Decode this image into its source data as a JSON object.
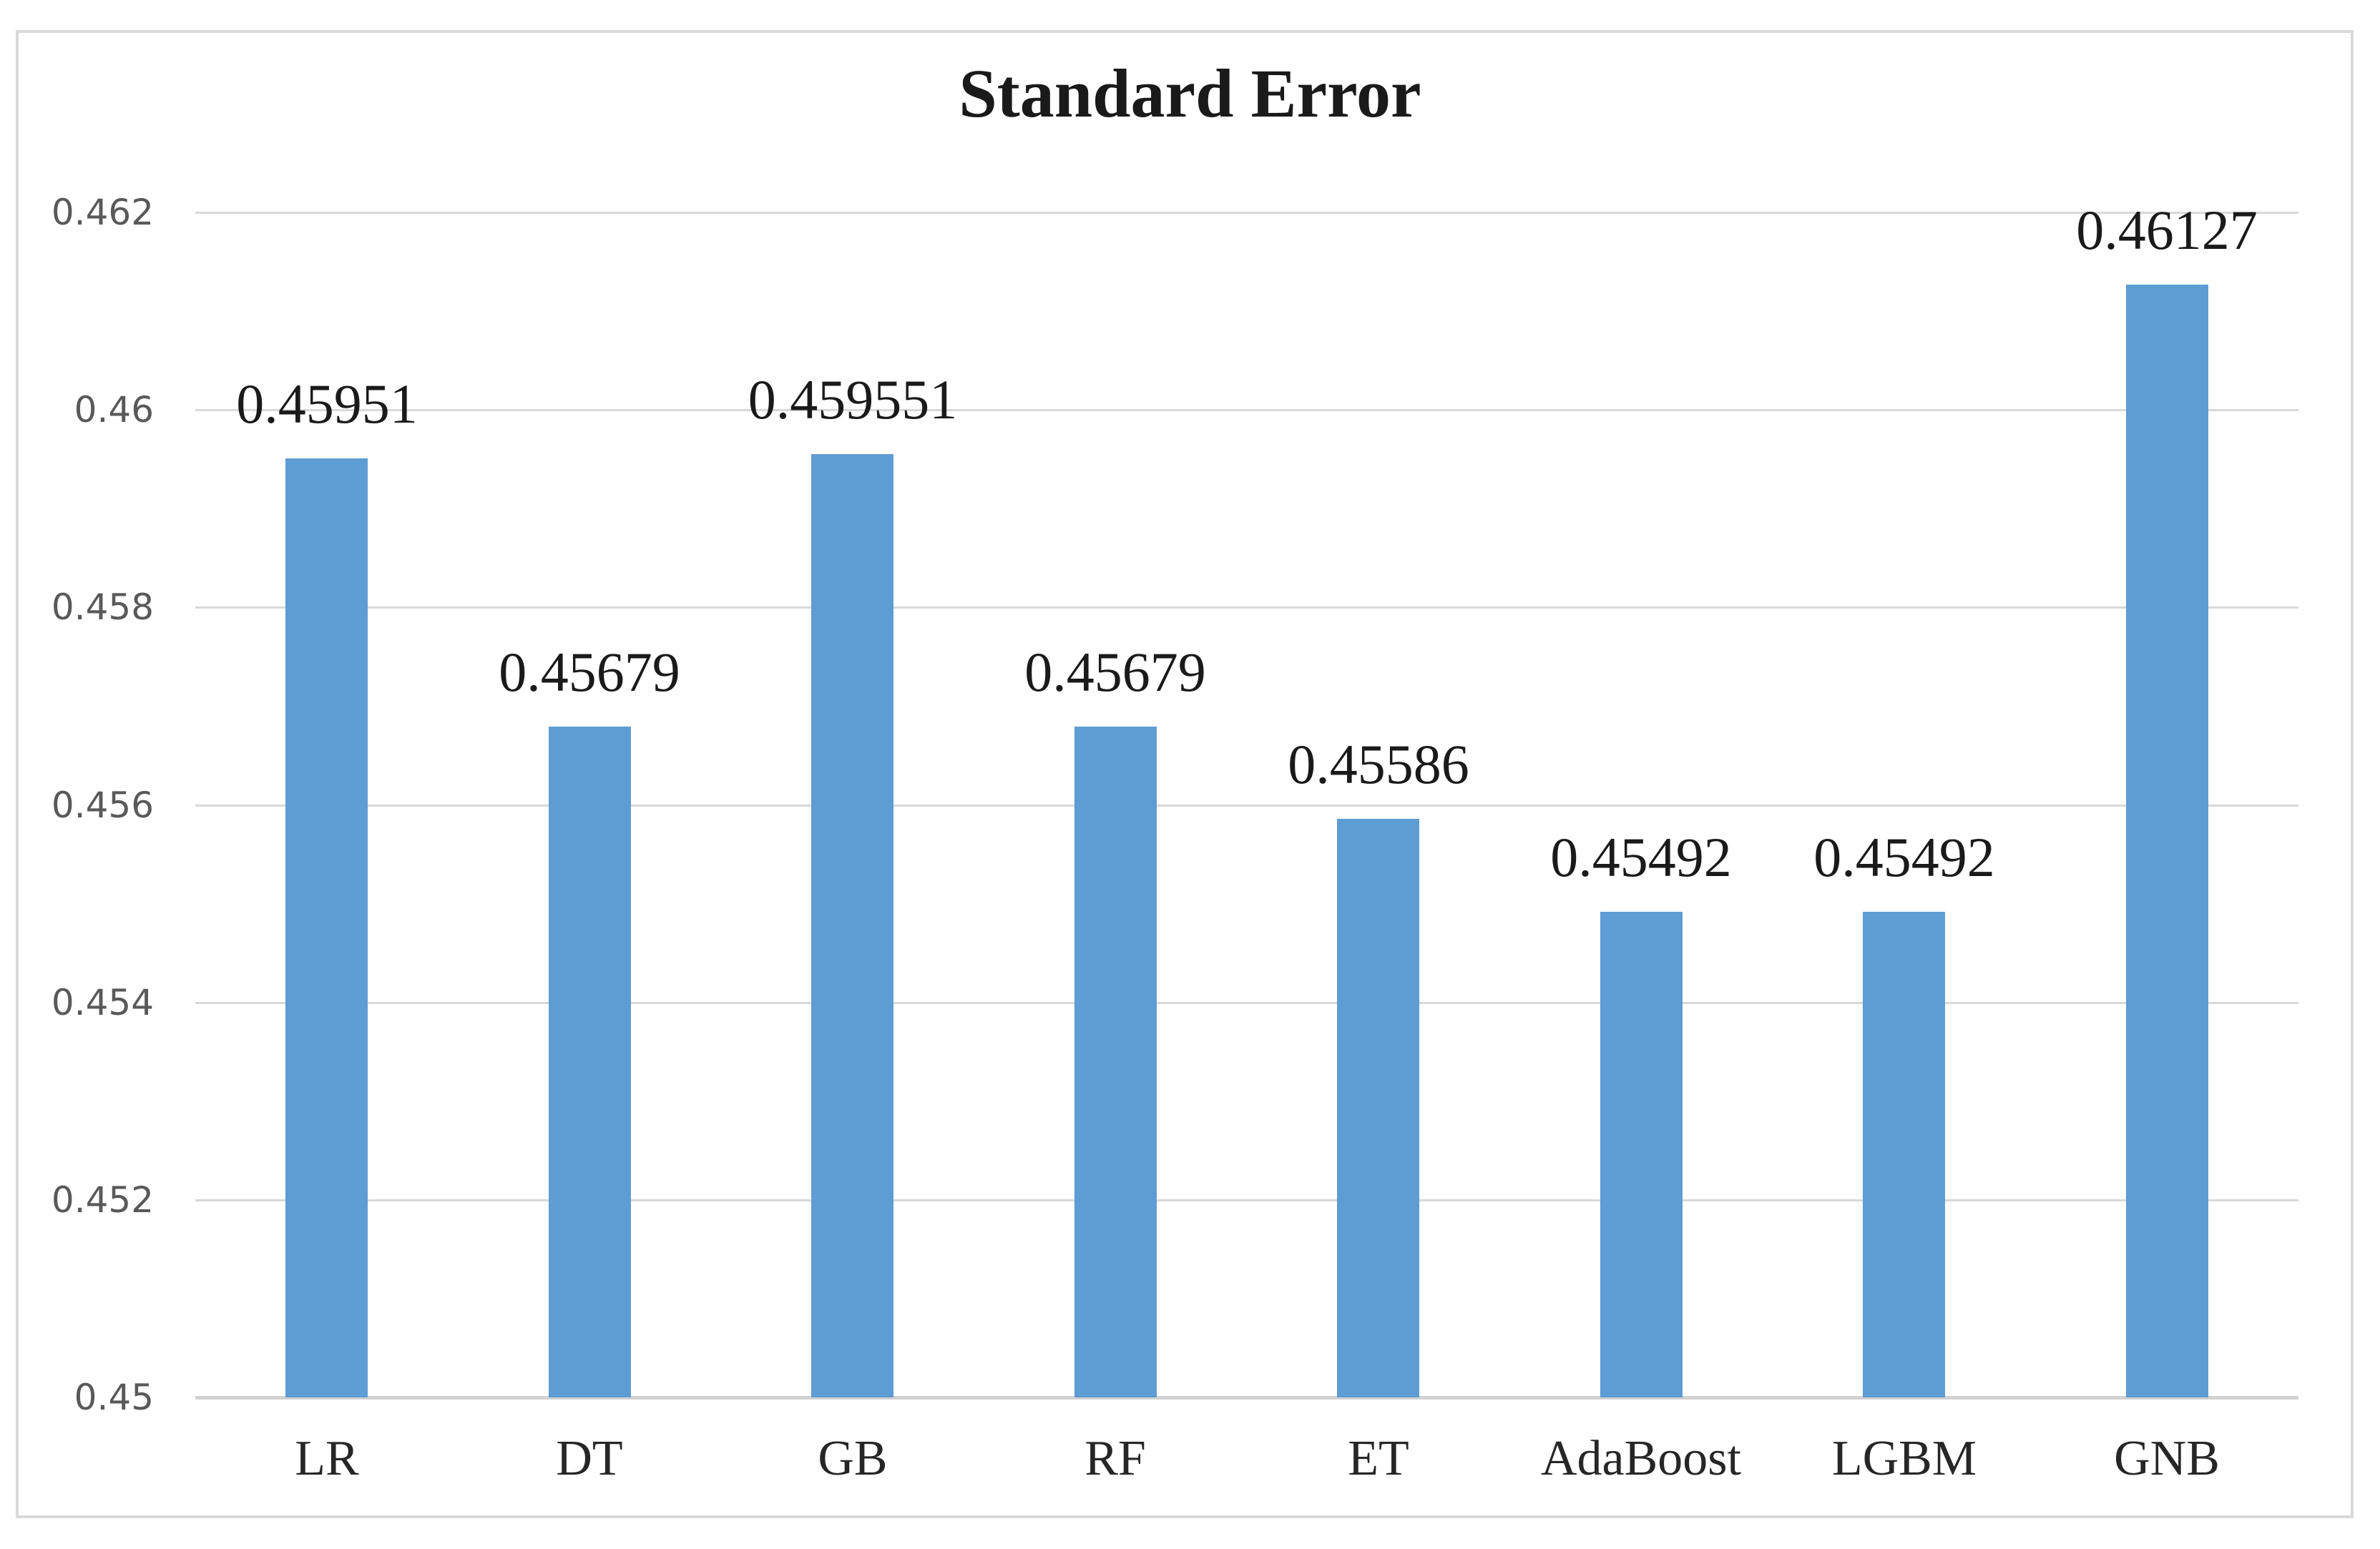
{
  "chart_data": {
    "type": "bar",
    "title": "Standard Error",
    "categories": [
      "LR",
      "DT",
      "GB",
      "RF",
      "ET",
      "AdaBoost",
      "LGBM",
      "GNB"
    ],
    "values": [
      0.45951,
      0.45679,
      0.459551,
      0.45679,
      0.45586,
      0.45492,
      0.45492,
      0.46127
    ],
    "data_labels": [
      "0.45951",
      "0.45679",
      "0.459551",
      "0.45679",
      "0.45586",
      "0.45492",
      "0.45492",
      "0.46127"
    ],
    "xlabel": "",
    "ylabel": "",
    "ylim": [
      0.45,
      0.462
    ],
    "yticks": [
      {
        "v": 0.45,
        "label": "0.45"
      },
      {
        "v": 0.452,
        "label": "0.452"
      },
      {
        "v": 0.454,
        "label": "0.454"
      },
      {
        "v": 0.456,
        "label": "0.456"
      },
      {
        "v": 0.458,
        "label": "0.458"
      },
      {
        "v": 0.46,
        "label": "0.46"
      },
      {
        "v": 0.462,
        "label": "0.462"
      }
    ],
    "grid": true,
    "legend": "none",
    "colors": {
      "bar": "#5E9CD4",
      "gridline": "#D9D9D9",
      "frame_border": "#D9D9D9",
      "ytick_text": "#595959",
      "label_text": "#1A1A1A"
    }
  }
}
